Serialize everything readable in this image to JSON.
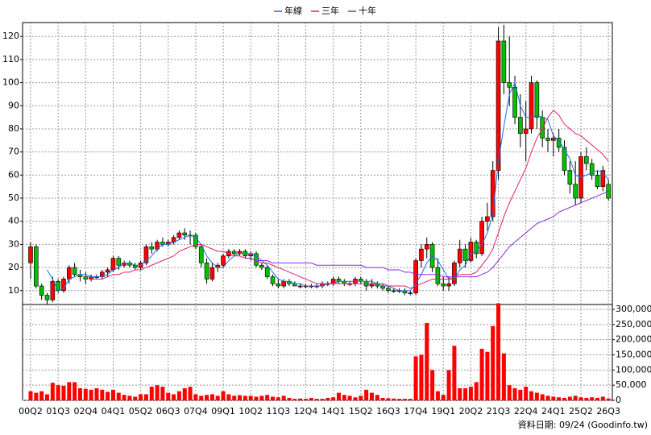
{
  "chart_data": {
    "type": "candlestick",
    "source_note": "資料日期: 09/24 (Goodinfo.tw)",
    "categories": [
      "00Q2",
      null,
      null,
      null,
      null,
      "01Q3",
      null,
      null,
      null,
      null,
      "02Q4",
      null,
      null,
      null,
      null,
      "04Q1",
      null,
      null,
      null,
      null,
      "05Q2",
      null,
      null,
      null,
      null,
      "06Q3",
      null,
      null,
      null,
      null,
      "07Q4",
      null,
      null,
      null,
      null,
      "09Q1",
      null,
      null,
      null,
      null,
      "10Q2",
      null,
      null,
      null,
      null,
      "11Q3",
      null,
      null,
      null,
      null,
      "12Q4",
      null,
      null,
      null,
      null,
      "14Q1",
      null,
      null,
      null,
      null,
      "15Q2",
      null,
      null,
      null,
      null,
      "16Q3",
      null,
      null,
      null,
      null,
      "17Q4",
      null,
      null,
      null,
      null,
      "19Q1",
      null,
      null,
      null,
      null,
      "20Q2",
      null,
      null,
      null,
      null,
      "21Q3",
      null,
      null,
      null,
      null,
      "22Q4",
      null,
      null,
      null,
      null,
      "24Q1",
      null,
      null,
      null,
      null,
      "25Q2",
      null,
      null,
      null,
      null,
      "26Q3"
    ],
    "open": [
      22,
      29,
      12,
      8,
      6,
      14,
      10,
      15,
      20,
      17,
      16,
      15,
      16,
      16,
      18,
      19,
      24,
      21,
      22,
      21,
      20,
      22,
      29,
      28,
      31,
      30,
      31,
      33,
      35,
      34,
      34,
      29,
      22,
      15,
      20,
      21,
      25,
      27,
      26,
      27,
      25,
      26,
      21,
      20,
      16,
      13,
      12,
      14,
      13,
      12,
      12,
      12,
      12,
      12,
      13,
      13,
      15,
      14,
      13,
      13,
      15,
      14,
      12,
      13,
      12,
      11,
      10,
      10,
      10,
      9,
      9,
      23,
      28,
      30,
      20,
      13,
      12,
      13,
      22,
      28,
      23,
      31,
      26,
      40,
      42,
      62,
      118,
      100,
      98,
      85,
      78,
      80,
      100,
      85,
      76,
      75,
      76,
      72,
      62,
      56,
      50,
      68,
      65,
      60,
      55,
      56
    ],
    "high": [
      31,
      30,
      13,
      9,
      16,
      15,
      16,
      21,
      22,
      19,
      18,
      17,
      17,
      19,
      20,
      25,
      25,
      23,
      23,
      22,
      23,
      30,
      31,
      32,
      33,
      32,
      34,
      36,
      37,
      36,
      35,
      30,
      24,
      22,
      22,
      26,
      28,
      28,
      28,
      28,
      27,
      27,
      22,
      21,
      17,
      15,
      15,
      15,
      14,
      13,
      13,
      13,
      13,
      14,
      14,
      16,
      16,
      15,
      14,
      16,
      16,
      15,
      15,
      14,
      13,
      12,
      11,
      11,
      11,
      10,
      24,
      30,
      33,
      31,
      24,
      16,
      16,
      23,
      32,
      30,
      33,
      32,
      42,
      48,
      66,
      124,
      125,
      120,
      103,
      95,
      92,
      103,
      101,
      88,
      80,
      78,
      80,
      75,
      66,
      66,
      70,
      72,
      67,
      62,
      64,
      58
    ],
    "low": [
      15,
      11,
      6,
      4,
      5,
      9,
      9,
      13,
      16,
      14,
      13,
      14,
      15,
      15,
      16,
      18,
      19,
      20,
      20,
      19,
      19,
      21,
      26,
      27,
      29,
      29,
      30,
      32,
      32,
      30,
      28,
      20,
      13,
      14,
      18,
      20,
      24,
      25,
      25,
      24,
      23,
      20,
      19,
      15,
      12,
      11,
      11,
      12,
      12,
      11,
      11,
      11,
      11,
      11,
      12,
      12,
      13,
      12,
      12,
      12,
      13,
      10,
      11,
      11,
      10,
      9,
      9,
      9,
      8,
      8,
      8,
      20,
      24,
      18,
      12,
      10,
      10,
      12,
      20,
      20,
      22,
      24,
      25,
      36,
      40,
      58,
      95,
      90,
      82,
      72,
      66,
      78,
      80,
      72,
      70,
      68,
      70,
      60,
      52,
      47,
      48,
      62,
      58,
      54,
      53,
      49
    ],
    "close": [
      29,
      12,
      8,
      6,
      14,
      10,
      15,
      20,
      17,
      16,
      15,
      16,
      16,
      18,
      19,
      24,
      21,
      22,
      21,
      20,
      22,
      29,
      28,
      31,
      30,
      31,
      33,
      35,
      34,
      34,
      29,
      22,
      15,
      20,
      21,
      25,
      27,
      26,
      27,
      25,
      26,
      21,
      20,
      16,
      13,
      12,
      14,
      13,
      12,
      12,
      12,
      12,
      12,
      13,
      13,
      15,
      14,
      13,
      13,
      15,
      14,
      12,
      13,
      12,
      11,
      10,
      10,
      10,
      9,
      9,
      23,
      28,
      30,
      20,
      13,
      12,
      13,
      22,
      28,
      23,
      31,
      26,
      40,
      42,
      62,
      118,
      100,
      98,
      85,
      78,
      80,
      100,
      85,
      76,
      75,
      76,
      72,
      62,
      56,
      50,
      68,
      65,
      60,
      55,
      62,
      50
    ],
    "volume": [
      30000,
      25000,
      30000,
      20000,
      58000,
      50000,
      48000,
      60000,
      60000,
      40000,
      38000,
      35000,
      40000,
      35000,
      28000,
      35000,
      25000,
      18000,
      15000,
      12000,
      20000,
      20000,
      45000,
      50000,
      45000,
      25000,
      20000,
      30000,
      40000,
      45000,
      20000,
      15000,
      18000,
      20000,
      15000,
      30000,
      20000,
      15000,
      17000,
      15000,
      15000,
      12000,
      15000,
      18000,
      12000,
      10000,
      15000,
      8000,
      5000,
      6000,
      5000,
      8000,
      5000,
      5000,
      8000,
      10000,
      25000,
      18000,
      15000,
      10000,
      15000,
      35000,
      25000,
      18000,
      8000,
      7000,
      6000,
      5000,
      5000,
      5000,
      145000,
      150000,
      255000,
      100000,
      30000,
      18000,
      100000,
      180000,
      40000,
      40000,
      45000,
      60000,
      170000,
      160000,
      245000,
      320000,
      155000,
      50000,
      40000,
      35000,
      45000,
      30000,
      25000,
      20000,
      15000,
      12000,
      10000,
      8000,
      12000,
      15000,
      10000,
      8000,
      10000,
      8000,
      12000,
      6000
    ],
    "up_color": "#ff0000",
    "down_color": "#00c000",
    "volume_color": "#ff0000",
    "lines": [
      {
        "name": "年線",
        "color": "#1f6fe0",
        "values": [
          null,
          null,
          null,
          19,
          15,
          10,
          11,
          15,
          16,
          17,
          17,
          16,
          16,
          16,
          17,
          19,
          20,
          22,
          22,
          21,
          21,
          23,
          25,
          28,
          30,
          30,
          31,
          32,
          33,
          34,
          33,
          30,
          25,
          22,
          20,
          20,
          23,
          25,
          26,
          26,
          26,
          25,
          23,
          21,
          18,
          15,
          14,
          14,
          13,
          13,
          12,
          12,
          12,
          12,
          13,
          13,
          14,
          14,
          14,
          14,
          14,
          14,
          14,
          13,
          12,
          12,
          11,
          10,
          10,
          10,
          13,
          17,
          22,
          25,
          23,
          19,
          15,
          15,
          19,
          21,
          26,
          27,
          30,
          35,
          43,
          66,
          81,
          95,
          100,
          90,
          85,
          85,
          86,
          85,
          84,
          77,
          75,
          71,
          67,
          60,
          59,
          60,
          61,
          62,
          61,
          58
        ]
      },
      {
        "name": "三年",
        "color": "#e0206a",
        "values": [
          null,
          null,
          null,
          null,
          null,
          null,
          null,
          null,
          null,
          null,
          null,
          15,
          15,
          15,
          16,
          17,
          17,
          18,
          18,
          19,
          19,
          20,
          21,
          22,
          23,
          24,
          25,
          27,
          28,
          29,
          30,
          30,
          29,
          28,
          27,
          27,
          26,
          25,
          25,
          24,
          24,
          23,
          22,
          22,
          21,
          20,
          19,
          18,
          17,
          16,
          15,
          14,
          13,
          13,
          13,
          13,
          13,
          13,
          13,
          13,
          13,
          13,
          13,
          13,
          13,
          12,
          12,
          12,
          12,
          11,
          12,
          13,
          14,
          15,
          15,
          15,
          15,
          16,
          17,
          17,
          17,
          18,
          21,
          24,
          28,
          35,
          42,
          48,
          53,
          58,
          63,
          70,
          76,
          80,
          85,
          88,
          86,
          82,
          80,
          78,
          77,
          75,
          73,
          71,
          69,
          66
        ]
      },
      {
        "name": "十年",
        "color": "#8a2be2",
        "values": [
          null,
          null,
          null,
          null,
          null,
          null,
          null,
          null,
          null,
          null,
          null,
          null,
          null,
          null,
          null,
          null,
          null,
          null,
          null,
          null,
          null,
          null,
          null,
          null,
          null,
          null,
          null,
          null,
          null,
          null,
          null,
          null,
          null,
          null,
          null,
          null,
          null,
          null,
          null,
          24,
          24,
          23,
          23,
          23,
          22,
          22,
          22,
          22,
          22,
          22,
          22,
          22,
          21,
          21,
          21,
          21,
          21,
          21,
          21,
          21,
          21,
          20,
          20,
          20,
          20,
          19,
          19,
          19,
          18,
          18,
          17,
          17,
          17,
          17,
          17,
          16,
          16,
          16,
          16,
          16,
          16,
          16,
          17,
          18,
          20,
          23,
          26,
          29,
          31,
          33,
          35,
          37,
          39,
          40,
          41,
          42,
          44,
          45,
          46,
          47,
          48,
          49,
          50,
          51,
          52,
          53
        ]
      }
    ],
    "ylim": [
      4,
      126
    ],
    "yticks": [
      10,
      20,
      30,
      40,
      50,
      60,
      70,
      80,
      90,
      100,
      110,
      120
    ],
    "y2lim": [
      0,
      316000
    ],
    "y2ticks": [
      {
        "value": 0,
        "label": "0"
      },
      {
        "value": 50000,
        "label": "50,000"
      },
      {
        "value": 100000,
        "label": "100,000"
      },
      {
        "value": 150000,
        "label": "150,000"
      },
      {
        "value": 200000,
        "label": "200,000"
      },
      {
        "value": 250000,
        "label": "250,000"
      },
      {
        "value": 300000,
        "label": "300,000"
      }
    ],
    "grid": true
  }
}
